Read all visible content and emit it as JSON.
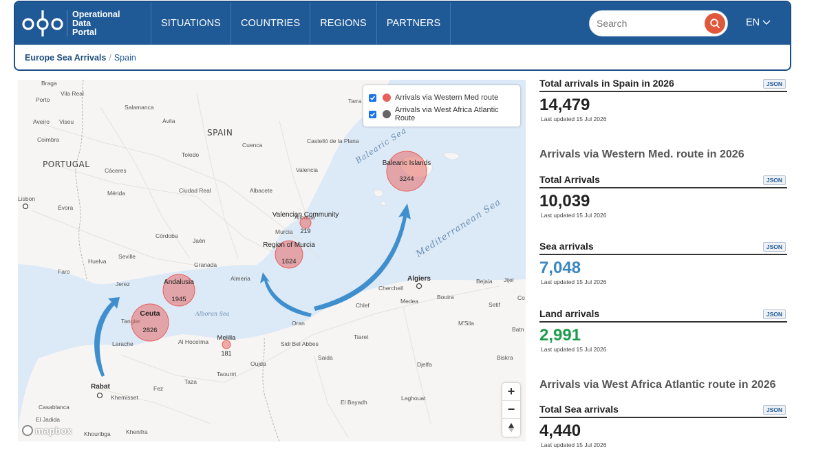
{
  "header": {
    "brand": {
      "line1": "Operational",
      "line2": "Data",
      "line3": "Portal"
    },
    "nav": [
      "SITUATIONS",
      "COUNTRIES",
      "REGIONS",
      "PARTNERS"
    ],
    "search": {
      "placeholder": "Search"
    },
    "language": "EN"
  },
  "breadcrumb": {
    "parent": "Europe Sea Arrivals",
    "separator": "/",
    "current": "Spain"
  },
  "map": {
    "legend": [
      {
        "label": "Arrivals via Western Med route",
        "color": "#e8605a",
        "checked": true
      },
      {
        "label": "Arrivals via West Africa Atlantic Route",
        "color": "#666666",
        "checked": true
      }
    ],
    "bubbles": [
      {
        "label": "Balearic Islands",
        "value": "3244"
      },
      {
        "label": "Valencian Community",
        "value": "219"
      },
      {
        "label": "Region of Murcia",
        "value": "1624"
      },
      {
        "label": "Andalusia",
        "value": "1945"
      },
      {
        "label": "Ceuta",
        "value": "2826"
      },
      {
        "label": "Melilla",
        "value": "181"
      }
    ],
    "sea_labels": [
      "Balearic Sea",
      "Mediterranean Sea",
      "Alboran Sea"
    ],
    "country_labels": [
      "SPAIN",
      "PORTUGAL"
    ],
    "places": [
      "Braga",
      "Vila Real",
      "Porto",
      "Salamanca",
      "Aveiro",
      "Viseu",
      "Ávila",
      "Coimbra",
      "Toledo",
      "Cuenca",
      "Castelló de la Plana",
      "Cáceres",
      "Valencia",
      "Lisbon",
      "Évora",
      "Mérida",
      "Ciudad Real",
      "Albacete",
      "Murcia",
      "Alicante",
      "Córdoba",
      "Jaén",
      "Huelva",
      "Seville",
      "Granada",
      "Faro",
      "Jerez",
      "Almeria",
      "Tangier",
      "Larache",
      "Al Hoceïma",
      "Oran",
      "Sidi Bel Abbes",
      "Tiaret",
      "Algiers",
      "Cherchell",
      "Medea",
      "Bouira",
      "Bejaia",
      "Jijel",
      "Chlef",
      "Setif",
      "M'Sila",
      "Batn",
      "Saida",
      "Djelfa",
      "Biskra",
      "Oujda",
      "Taourirt",
      "Taza",
      "Fez",
      "Rabat",
      "Khemisset",
      "Casablanca",
      "El Jadida",
      "Khouribga",
      "Khenifra",
      "El Bayadh",
      "Laghouat",
      "Co",
      "Tarra"
    ],
    "zoom": {
      "in": "+",
      "out": "−"
    },
    "attribution": "mapbox"
  },
  "stats": {
    "total": {
      "title": "Total arrivals in Spain in 2026",
      "value": "14,479",
      "updated": "Last updated 15 Jul 2026"
    },
    "western_section": "Arrivals via Western Med. route in 2026",
    "western_total": {
      "title": "Total Arrivals",
      "value": "10,039",
      "updated": "Last updated 15 Jul 2026"
    },
    "sea": {
      "title": "Sea arrivals",
      "value": "7,048",
      "updated": "Last updated 15 Jul 2026"
    },
    "land": {
      "title": "Land arrivals",
      "value": "2,991",
      "updated": "Last updated 15 Jul 2026"
    },
    "atlantic_section": "Arrivals via West Africa Atlantic route in 2026",
    "atlantic_sea": {
      "title": "Total Sea arrivals",
      "value": "4,440",
      "updated": "Last updated 15 Jul 2026"
    },
    "json_label": "JSON"
  },
  "colors": {
    "header": "#1f5a96",
    "search_button": "#e0583b",
    "sea": "#dce9f6",
    "bubble": "#e8605a",
    "arrow": "#3f8fce",
    "sea_stat": "#3b87c3",
    "land_stat": "#1d9c4c"
  }
}
